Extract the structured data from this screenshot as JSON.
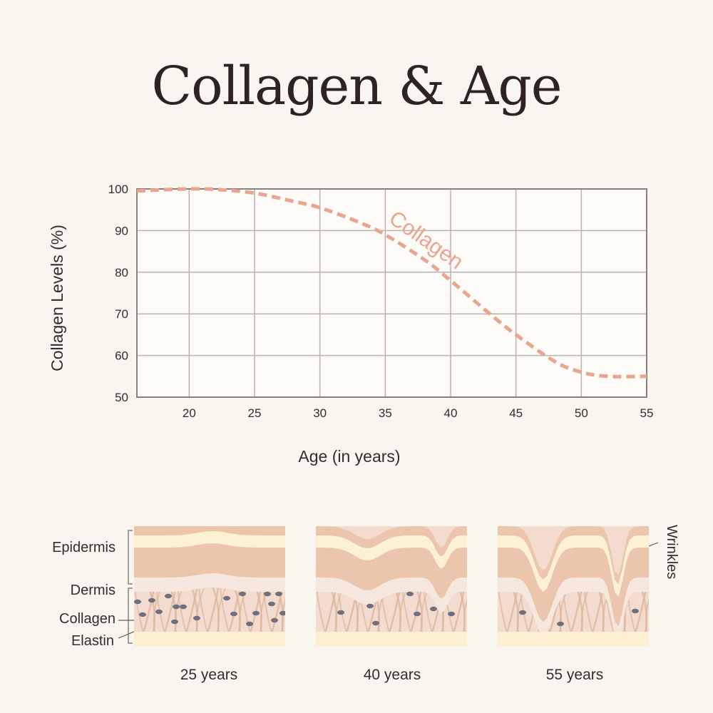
{
  "title": "Collagen & Age",
  "chart_data": {
    "type": "line",
    "title": "Collagen & Age",
    "xlabel": "Age (in years)",
    "ylabel": "Collagen Levels (%)",
    "x_ticks": [
      20,
      25,
      30,
      35,
      40,
      45,
      50,
      55
    ],
    "y_ticks": [
      50,
      60,
      70,
      80,
      90,
      100
    ],
    "xlim": [
      16,
      55
    ],
    "ylim": [
      50,
      100
    ],
    "grid": true,
    "series": [
      {
        "name": "Collagen",
        "color": "#e8a690",
        "style": "dashed",
        "x": [
          16,
          18,
          20,
          22,
          25,
          28,
          30,
          33,
          35,
          38,
          40,
          43,
          45,
          48,
          50,
          52,
          55
        ],
        "values": [
          99.5,
          99.8,
          100,
          99.9,
          99,
          97,
          95.5,
          92,
          89,
          83,
          78,
          70,
          65,
          58.5,
          56,
          55,
          55
        ]
      }
    ],
    "annotations": [
      {
        "text": "Collagen",
        "x": 39,
        "y": 85,
        "rotation": 35
      }
    ]
  },
  "diagram": {
    "layer_labels": [
      "Epidermis",
      "Dermis",
      "Collagen",
      "Elastin"
    ],
    "wrinkles_label": "Wrinkles",
    "panels": [
      {
        "label": "25 years"
      },
      {
        "label": "40 years"
      },
      {
        "label": "55 years"
      }
    ],
    "colors": {
      "epidermis": "#ecc6ac",
      "stratum": "#fdf1d4",
      "membrane": "#f5e6de",
      "dermis": "#f3dccf",
      "fiber": "#ddb69c",
      "elastin": "#6f6f82",
      "base": "#fdf0d2"
    }
  },
  "colors": {
    "background": "#f9f5ef",
    "plot_bg": "#fdfbf7",
    "grid": "#b9b3b0",
    "axis": "#8a7f7c",
    "text": "#3a2a2b",
    "curve": "#e8a690"
  }
}
